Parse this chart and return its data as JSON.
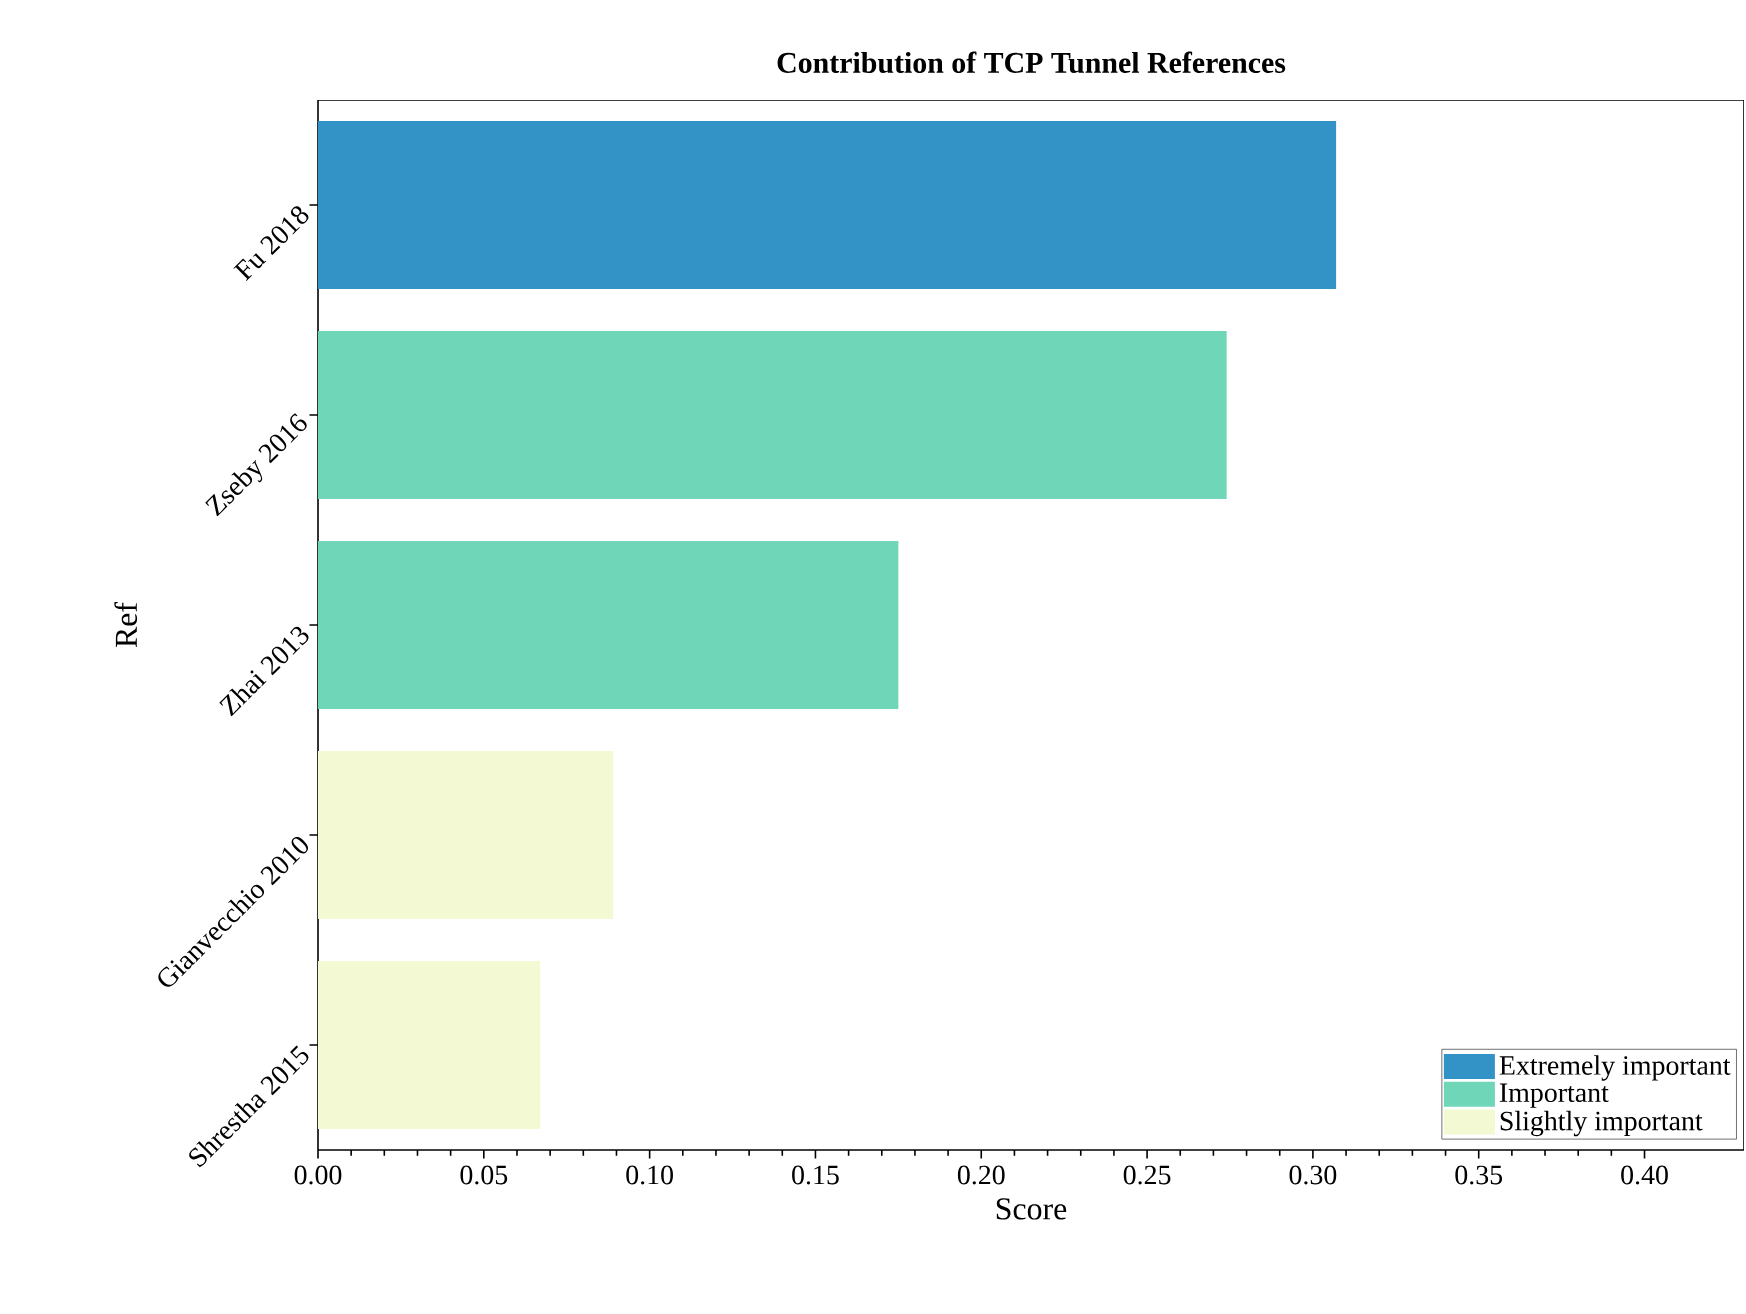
{
  "chart_data": {
    "type": "bar",
    "orientation": "horizontal",
    "title": "Contribution of TCP Tunnel References",
    "xlabel": "Score",
    "ylabel": "Ref",
    "categories": [
      "Fu 2018",
      "Zseby 2016",
      "Zhai 2013",
      "Gianvecchio 2010",
      "Shrestha 2015"
    ],
    "series": [
      {
        "name": "Extremely important",
        "color": "#3393c6",
        "values": [
          0.307,
          null,
          null,
          null,
          null
        ]
      },
      {
        "name": "Important",
        "color": "#70d6b8",
        "values": [
          null,
          0.274,
          0.175,
          null,
          null
        ]
      },
      {
        "name": "Slightly important",
        "color": "#f2f9d3",
        "values": [
          null,
          null,
          null,
          0.089,
          0.067
        ]
      }
    ],
    "xlim": [
      0,
      0.43
    ],
    "xticks": [
      {
        "value": 0,
        "label": "0.00"
      },
      0.05,
      {
        "value": 0.1,
        "label": "0.10"
      },
      0.15,
      {
        "value": 0.2,
        "label": "0.20"
      },
      0.25,
      {
        "value": 0.3,
        "label": "0.30"
      },
      0.35,
      {
        "value": 0.4,
        "label": "0.40"
      }
    ],
    "legend": "bottom right",
    "grid": false
  }
}
